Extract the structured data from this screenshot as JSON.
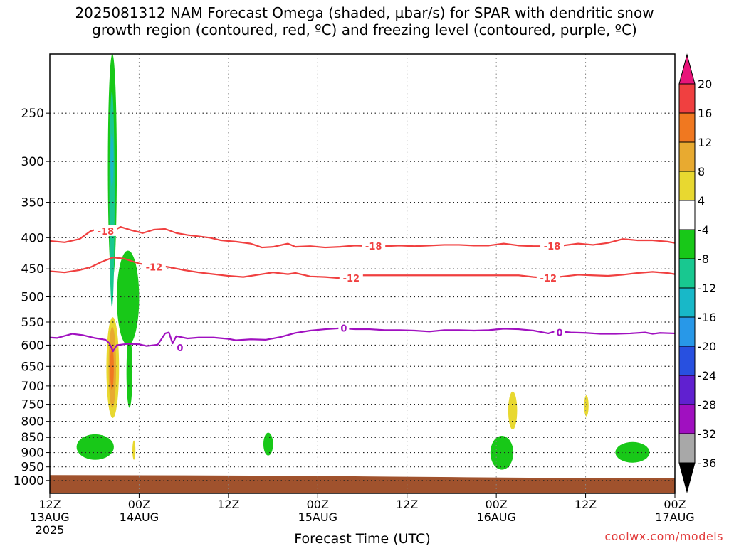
{
  "title_line1": "2025081312 NAM Forecast Omega (shaded, μbar/s) for SPAR with dendritic snow",
  "title_line2": "growth region (contoured, red, ºC) and freezing level (contoured, purple, ºC)",
  "credit": "coolwx.com/models",
  "chart_data": {
    "type": "heatmap",
    "xlabel": "Forecast Time (UTC)",
    "x_unit": "forecast hour from 2025-08-13 12Z",
    "xlim": [
      0,
      84
    ],
    "x_ticks": [
      {
        "hour": 0,
        "lines": [
          "12Z",
          "13AUG",
          "2025"
        ]
      },
      {
        "hour": 12,
        "lines": [
          "00Z",
          "14AUG"
        ]
      },
      {
        "hour": 24,
        "lines": [
          "12Z"
        ]
      },
      {
        "hour": 36,
        "lines": [
          "00Z",
          "15AUG"
        ]
      },
      {
        "hour": 48,
        "lines": [
          "12Z"
        ]
      },
      {
        "hour": 60,
        "lines": [
          "00Z",
          "16AUG"
        ]
      },
      {
        "hour": 72,
        "lines": [
          "12Z"
        ]
      },
      {
        "hour": 84,
        "lines": [
          "00Z",
          "17AUG"
        ]
      }
    ],
    "ylabel": "",
    "y_scale": "log",
    "ylim": [
      1050,
      200
    ],
    "y_ticks": [
      250,
      300,
      350,
      400,
      450,
      500,
      550,
      600,
      650,
      700,
      750,
      800,
      850,
      900,
      950,
      1000
    ],
    "grid": true,
    "colorbar": {
      "ticks": [
        "20",
        "16",
        "12",
        "8",
        "4",
        "-4",
        "-8",
        "-12",
        "-16",
        "-20",
        "-24",
        "-28",
        "-32",
        "-36"
      ],
      "bins": [
        {
          "from": 20,
          "to": 24,
          "color": "#e8157a"
        },
        {
          "from": 16,
          "to": 20,
          "color": "#f04040"
        },
        {
          "from": 12,
          "to": 16,
          "color": "#f07820"
        },
        {
          "from": 8,
          "to": 12,
          "color": "#e8aa30"
        },
        {
          "from": 4,
          "to": 8,
          "color": "#e8d830"
        },
        {
          "from": -4,
          "to": 4,
          "color": "#ffffff"
        },
        {
          "from": -8,
          "to": -4,
          "color": "#18c818"
        },
        {
          "from": -12,
          "to": -8,
          "color": "#18c890"
        },
        {
          "from": -16,
          "to": -12,
          "color": "#18b8c8"
        },
        {
          "from": -20,
          "to": -16,
          "color": "#2898e8"
        },
        {
          "from": -24,
          "to": -20,
          "color": "#2850e0"
        },
        {
          "from": -28,
          "to": -24,
          "color": "#6020d0"
        },
        {
          "from": -32,
          "to": -28,
          "color": "#a010c0"
        },
        {
          "from": -36,
          "to": -32,
          "color": "#a8a8a8"
        },
        {
          "from": -40,
          "to": -36,
          "color": "#000000"
        }
      ]
    },
    "contours": [
      {
        "name": "-18",
        "color": "#f04040",
        "labels": [
          {
            "hour": 7.5,
            "p": 390
          },
          {
            "hour": 43.5,
            "p": 413
          },
          {
            "hour": 67.5,
            "p": 413
          }
        ],
        "points": [
          [
            0,
            405
          ],
          [
            2,
            407
          ],
          [
            4,
            402
          ],
          [
            5.5,
            390
          ],
          [
            6.5,
            387
          ],
          [
            8,
            393
          ],
          [
            9.5,
            384
          ],
          [
            11,
            389
          ],
          [
            12.5,
            393
          ],
          [
            14,
            388
          ],
          [
            15.5,
            387
          ],
          [
            17,
            393
          ],
          [
            18.5,
            396
          ],
          [
            20,
            398
          ],
          [
            21.5,
            400
          ],
          [
            23,
            404
          ],
          [
            25,
            406
          ],
          [
            27,
            409
          ],
          [
            28.5,
            415
          ],
          [
            30,
            414
          ],
          [
            32,
            409
          ],
          [
            33,
            414
          ],
          [
            35,
            413
          ],
          [
            37,
            415
          ],
          [
            39,
            414
          ],
          [
            41,
            412
          ],
          [
            43,
            413
          ],
          [
            45,
            413
          ],
          [
            47,
            412
          ],
          [
            49,
            413
          ],
          [
            51,
            412
          ],
          [
            53,
            411
          ],
          [
            55,
            411
          ],
          [
            57,
            412
          ],
          [
            59,
            412
          ],
          [
            61,
            409
          ],
          [
            63,
            412
          ],
          [
            65,
            413
          ],
          [
            67,
            413
          ],
          [
            69,
            412
          ],
          [
            71,
            409
          ],
          [
            73,
            411
          ],
          [
            75,
            408
          ],
          [
            77,
            402
          ],
          [
            79,
            404
          ],
          [
            81,
            404
          ],
          [
            83,
            406
          ],
          [
            84,
            408
          ]
        ]
      },
      {
        "name": "-12",
        "color": "#f04040",
        "labels": [
          {
            "hour": 14,
            "p": 447
          },
          {
            "hour": 40.5,
            "p": 466
          },
          {
            "hour": 67,
            "p": 466
          }
        ],
        "points": [
          [
            0,
            454
          ],
          [
            2,
            456
          ],
          [
            4,
            452
          ],
          [
            5.5,
            447
          ],
          [
            7,
            438
          ],
          [
            8.5,
            431
          ],
          [
            10,
            433
          ],
          [
            12,
            441
          ],
          [
            13,
            443
          ],
          [
            14.5,
            444
          ],
          [
            16,
            447
          ],
          [
            18,
            452
          ],
          [
            20,
            456
          ],
          [
            22,
            459
          ],
          [
            24,
            462
          ],
          [
            26,
            464
          ],
          [
            28,
            460
          ],
          [
            30,
            456
          ],
          [
            32,
            459
          ],
          [
            33,
            457
          ],
          [
            35,
            463
          ],
          [
            37,
            464
          ],
          [
            39,
            466
          ],
          [
            41,
            461
          ],
          [
            43,
            461
          ],
          [
            45,
            461
          ],
          [
            47,
            461
          ],
          [
            49,
            461
          ],
          [
            51,
            461
          ],
          [
            53,
            461
          ],
          [
            55,
            461
          ],
          [
            57,
            461
          ],
          [
            59,
            461
          ],
          [
            61,
            461
          ],
          [
            63,
            461
          ],
          [
            65,
            464
          ],
          [
            67,
            466
          ],
          [
            69,
            463
          ],
          [
            71,
            460
          ],
          [
            73,
            461
          ],
          [
            75,
            462
          ],
          [
            77,
            460
          ],
          [
            79,
            457
          ],
          [
            81,
            455
          ],
          [
            83,
            457
          ],
          [
            84,
            459
          ]
        ]
      },
      {
        "name": "0",
        "color": "#a010c0",
        "labels": [
          {
            "hour": 17.5,
            "p": 606
          },
          {
            "hour": 39.5,
            "p": 563
          },
          {
            "hour": 68.5,
            "p": 572
          }
        ],
        "points": [
          [
            0,
            583
          ],
          [
            1,
            584
          ],
          [
            3,
            575
          ],
          [
            4.5,
            578
          ],
          [
            6,
            584
          ],
          [
            7.5,
            588
          ],
          [
            8,
            596
          ],
          [
            8.5,
            614
          ],
          [
            9,
            600
          ],
          [
            10.5,
            597
          ],
          [
            12,
            598
          ],
          [
            13,
            602
          ],
          [
            14.5,
            599
          ],
          [
            15.5,
            574
          ],
          [
            16,
            572
          ],
          [
            16.5,
            596
          ],
          [
            17,
            580
          ],
          [
            18.5,
            585
          ],
          [
            20,
            583
          ],
          [
            22,
            583
          ],
          [
            24,
            586
          ],
          [
            25,
            589
          ],
          [
            27,
            587
          ],
          [
            29,
            588
          ],
          [
            31,
            582
          ],
          [
            33,
            573
          ],
          [
            35,
            568
          ],
          [
            37,
            565
          ],
          [
            39,
            563
          ],
          [
            41,
            565
          ],
          [
            43,
            565
          ],
          [
            45,
            567
          ],
          [
            47,
            567
          ],
          [
            49,
            568
          ],
          [
            51,
            570
          ],
          [
            53,
            567
          ],
          [
            55,
            567
          ],
          [
            57,
            568
          ],
          [
            59,
            567
          ],
          [
            61,
            564
          ],
          [
            63,
            565
          ],
          [
            65,
            568
          ],
          [
            67,
            574
          ],
          [
            68,
            569
          ],
          [
            70,
            572
          ],
          [
            72,
            573
          ],
          [
            74,
            575
          ],
          [
            76,
            575
          ],
          [
            78,
            574
          ],
          [
            80,
            572
          ],
          [
            81,
            575
          ],
          [
            82,
            573
          ],
          [
            84,
            574
          ]
        ]
      }
    ],
    "shaded_regions": [
      {
        "label": "omega -8 to -4",
        "color": "#18c818",
        "x": [
          7.8,
          9.0
        ],
        "p": [
          470,
          200
        ]
      },
      {
        "label": "omega -12 to -8",
        "color": "#18c890",
        "x": [
          8.0,
          8.7
        ],
        "p": [
          520,
          230
        ]
      },
      {
        "label": "omega -16 to -12",
        "color": "#18b8c8",
        "x": [
          8.15,
          8.55
        ],
        "p": [
          330,
          270
        ]
      },
      {
        "label": "omega -8 to -4",
        "color": "#18c818",
        "x": [
          9.0,
          12.0
        ],
        "p": [
          600,
          420
        ]
      },
      {
        "label": "omega -8 to -4",
        "color": "#18c818",
        "x": [
          10.3,
          11.1
        ],
        "p": [
          760,
          580
        ]
      },
      {
        "label": "omega 4 to 8",
        "color": "#e8d830",
        "x": [
          7.6,
          9.3
        ],
        "p": [
          790,
          540
        ]
      },
      {
        "label": "omega 8 to 12",
        "color": "#e8aa30",
        "x": [
          7.9,
          8.9
        ],
        "p": [
          760,
          560
        ]
      },
      {
        "label": "omega 12 to 16",
        "color": "#f07820",
        "x": [
          8.1,
          8.6
        ],
        "p": [
          710,
          600
        ]
      },
      {
        "label": "omega -8 to -4",
        "color": "#18c818",
        "x": [
          3.6,
          8.6
        ],
        "p": [
          925,
          840
        ]
      },
      {
        "label": "omega 4 to 8",
        "color": "#e8d830",
        "x": [
          11.1,
          11.5
        ],
        "p": [
          925,
          860
        ]
      },
      {
        "label": "omega -8 to -4",
        "color": "#18c818",
        "x": [
          28.7,
          30.0
        ],
        "p": [
          910,
          835
        ]
      },
      {
        "label": "omega -8 to -4",
        "color": "#18c818",
        "x": [
          59.2,
          62.3
        ],
        "p": [
          960,
          845
        ]
      },
      {
        "label": "omega 4 to 8",
        "color": "#e8d830",
        "x": [
          61.6,
          62.8
        ],
        "p": [
          825,
          715
        ]
      },
      {
        "label": "omega 4 to 8",
        "color": "#e8d830",
        "x": [
          71.8,
          72.4
        ],
        "p": [
          785,
          725
        ]
      },
      {
        "label": "omega -8 to -4",
        "color": "#18c818",
        "x": [
          76.0,
          80.6
        ],
        "p": [
          935,
          865
        ]
      }
    ],
    "terrain": {
      "label": "ground",
      "color": "#a0522d",
      "points": [
        [
          0,
          980
        ],
        [
          18,
          981
        ],
        [
          36,
          983
        ],
        [
          46,
          986
        ],
        [
          56,
          988
        ],
        [
          66,
          990
        ],
        [
          84,
          990
        ]
      ]
    }
  }
}
